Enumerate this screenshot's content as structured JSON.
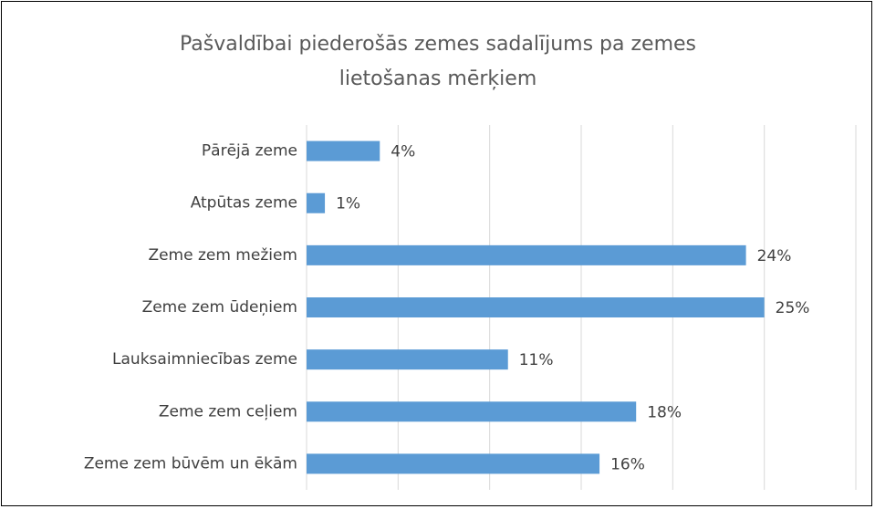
{
  "chart_data": {
    "type": "hbar",
    "title": "Pašvaldībai piederošās zemes sadalījums pa zemes lietošanas mērķiem",
    "categories": [
      "Pārējā zeme",
      "Atpūtas zeme",
      "Zeme zem mežiem",
      "Zeme zem ūdeņiem",
      "Lauksaimniecības zeme",
      "Zeme zem ceļiem",
      "Zeme zem būvēm un ēkām"
    ],
    "values": [
      4,
      1,
      24,
      25,
      11,
      18,
      16
    ],
    "value_labels": [
      "4%",
      "1%",
      "24%",
      "25%",
      "11%",
      "18%",
      "16%"
    ],
    "color": "#5b9bd5",
    "xlim": [
      0,
      30
    ],
    "xticks": [
      0,
      5,
      10,
      15,
      20,
      25,
      30
    ],
    "grid": true
  }
}
